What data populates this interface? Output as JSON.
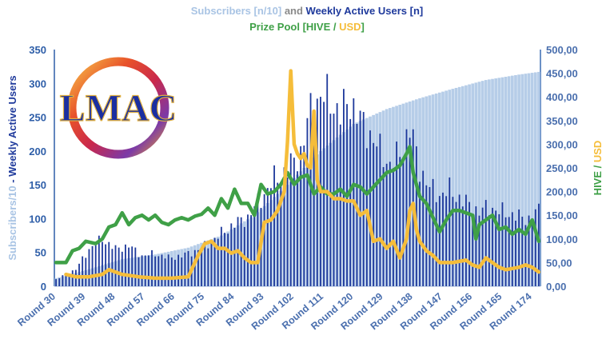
{
  "title": {
    "subs_part": "Subscribers [n/10]",
    "and_part": " and ",
    "wau_part": "Weekly Active Users [n]",
    "prize_part": "Prize Pool [HIVE",
    "slash_part": " / ",
    "usd_part": "USD",
    "close_part": "]"
  },
  "left_axis_label": {
    "subs_part": "Subscribers/10",
    "sep_part": " - ",
    "wau_part": "Weekly Active Users"
  },
  "right_axis_label": {
    "hive_part": "HIVE",
    "slash_part": " / ",
    "usd_part": "USD"
  },
  "logo": {
    "text": "LMAC"
  },
  "colors": {
    "subscribers": "#a9c4e4",
    "wau": "#1f3a9c",
    "hive": "#3fa047",
    "usd": "#f5bd3a",
    "left_axis": "#2e5ea8",
    "right_axis": "#3a6cb3",
    "ticks": "#4a6fae"
  },
  "chart_data": {
    "type": "bar",
    "x_start_round": 30,
    "x_end_round": 176,
    "x_tick_labels": [
      "Round 30",
      "Round 39",
      "Round 48",
      "Round 57",
      "Round 66",
      "Round 75",
      "Round 84",
      "Round 93",
      "Round 102",
      "Round 111",
      "Round 120",
      "Round 129",
      "Round 138",
      "Round 147",
      "Round 156",
      "Round 165",
      "Round 174"
    ],
    "left_axis": {
      "min": 0,
      "max": 350,
      "ticks": [
        "0",
        "50",
        "100",
        "150",
        "200",
        "250",
        "300",
        "350"
      ]
    },
    "right_axis": {
      "min": 0,
      "max": 500,
      "ticks": [
        "0,00",
        "50,00",
        "100,00",
        "150,00",
        "200,00",
        "250,00",
        "300,00",
        "350,00",
        "400,00",
        "450,00",
        "500,00"
      ]
    },
    "series": [
      {
        "name": "Subscribers [n/10]",
        "type": "bar",
        "axis": "left",
        "keypoints": [
          [
            30,
            12
          ],
          [
            40,
            25
          ],
          [
            50,
            40
          ],
          [
            60,
            47
          ],
          [
            70,
            57
          ],
          [
            80,
            75
          ],
          [
            90,
            105
          ],
          [
            100,
            150
          ],
          [
            110,
            200
          ],
          [
            120,
            240
          ],
          [
            130,
            262
          ],
          [
            140,
            278
          ],
          [
            150,
            292
          ],
          [
            160,
            305
          ],
          [
            170,
            313
          ],
          [
            176,
            317
          ]
        ]
      },
      {
        "name": "Weekly Active Users [n]",
        "type": "bar",
        "axis": "left",
        "keypoints": [
          [
            30,
            10
          ],
          [
            36,
            25
          ],
          [
            40,
            55
          ],
          [
            44,
            70
          ],
          [
            48,
            55
          ],
          [
            52,
            60
          ],
          [
            56,
            45
          ],
          [
            60,
            48
          ],
          [
            64,
            42
          ],
          [
            68,
            45
          ],
          [
            72,
            52
          ],
          [
            76,
            62
          ],
          [
            80,
            78
          ],
          [
            84,
            92
          ],
          [
            88,
            102
          ],
          [
            92,
            130
          ],
          [
            96,
            158
          ],
          [
            100,
            172
          ],
          [
            104,
            198
          ],
          [
            107,
            260
          ],
          [
            110,
            282
          ],
          [
            113,
            275
          ],
          [
            116,
            255
          ],
          [
            119,
            275
          ],
          [
            122,
            245
          ],
          [
            125,
            225
          ],
          [
            128,
            200
          ],
          [
            131,
            180
          ],
          [
            134,
            195
          ],
          [
            137,
            235
          ],
          [
            140,
            175
          ],
          [
            143,
            145
          ],
          [
            146,
            135
          ],
          [
            149,
            142
          ],
          [
            152,
            130
          ],
          [
            155,
            120
          ],
          [
            158,
            110
          ],
          [
            161,
            118
          ],
          [
            164,
            110
          ],
          [
            167,
            108
          ],
          [
            170,
            102
          ],
          [
            173,
            100
          ],
          [
            176,
            112
          ]
        ]
      },
      {
        "name": "HIVE",
        "type": "line",
        "axis": "right",
        "keypoints": [
          [
            30,
            50
          ],
          [
            33,
            50
          ],
          [
            35,
            75
          ],
          [
            37,
            80
          ],
          [
            39,
            95
          ],
          [
            42,
            90
          ],
          [
            44,
            100
          ],
          [
            46,
            125
          ],
          [
            48,
            130
          ],
          [
            50,
            155
          ],
          [
            52,
            130
          ],
          [
            54,
            145
          ],
          [
            56,
            150
          ],
          [
            58,
            140
          ],
          [
            60,
            150
          ],
          [
            62,
            135
          ],
          [
            64,
            130
          ],
          [
            66,
            140
          ],
          [
            68,
            145
          ],
          [
            70,
            140
          ],
          [
            72,
            148
          ],
          [
            74,
            152
          ],
          [
            76,
            165
          ],
          [
            78,
            150
          ],
          [
            80,
            185
          ],
          [
            82,
            165
          ],
          [
            84,
            205
          ],
          [
            86,
            175
          ],
          [
            88,
            175
          ],
          [
            90,
            150
          ],
          [
            92,
            215
          ],
          [
            94,
            195
          ],
          [
            96,
            200
          ],
          [
            98,
            215
          ],
          [
            100,
            240
          ],
          [
            102,
            215
          ],
          [
            104,
            230
          ],
          [
            106,
            235
          ],
          [
            108,
            195
          ],
          [
            110,
            210
          ],
          [
            112,
            195
          ],
          [
            114,
            195
          ],
          [
            116,
            205
          ],
          [
            118,
            190
          ],
          [
            120,
            215
          ],
          [
            122,
            210
          ],
          [
            124,
            195
          ],
          [
            126,
            210
          ],
          [
            128,
            225
          ],
          [
            130,
            240
          ],
          [
            132,
            245
          ],
          [
            134,
            255
          ],
          [
            136,
            280
          ],
          [
            137,
            295
          ],
          [
            138,
            240
          ],
          [
            140,
            190
          ],
          [
            142,
            175
          ],
          [
            144,
            145
          ],
          [
            146,
            115
          ],
          [
            148,
            140
          ],
          [
            150,
            160
          ],
          [
            152,
            160
          ],
          [
            154,
            155
          ],
          [
            156,
            150
          ],
          [
            157,
            100
          ],
          [
            158,
            130
          ],
          [
            160,
            140
          ],
          [
            162,
            150
          ],
          [
            164,
            120
          ],
          [
            166,
            125
          ],
          [
            168,
            110
          ],
          [
            170,
            120
          ],
          [
            172,
            110
          ],
          [
            174,
            140
          ],
          [
            176,
            95
          ]
        ]
      },
      {
        "name": "USD",
        "type": "line",
        "axis": "right",
        "keypoints": [
          [
            33,
            25
          ],
          [
            36,
            20
          ],
          [
            40,
            20
          ],
          [
            44,
            25
          ],
          [
            46,
            35
          ],
          [
            48,
            30
          ],
          [
            50,
            25
          ],
          [
            55,
            20
          ],
          [
            60,
            17
          ],
          [
            65,
            17
          ],
          [
            70,
            20
          ],
          [
            73,
            65
          ],
          [
            75,
            90
          ],
          [
            77,
            95
          ],
          [
            79,
            80
          ],
          [
            81,
            80
          ],
          [
            83,
            70
          ],
          [
            85,
            75
          ],
          [
            87,
            60
          ],
          [
            89,
            50
          ],
          [
            91,
            50
          ],
          [
            93,
            135
          ],
          [
            95,
            140
          ],
          [
            97,
            160
          ],
          [
            99,
            200
          ],
          [
            100,
            305
          ],
          [
            101,
            455
          ],
          [
            102,
            300
          ],
          [
            103,
            280
          ],
          [
            104,
            270
          ],
          [
            105,
            280
          ],
          [
            106,
            255
          ],
          [
            107,
            250
          ],
          [
            108,
            370
          ],
          [
            109,
            225
          ],
          [
            110,
            200
          ],
          [
            112,
            200
          ],
          [
            114,
            185
          ],
          [
            116,
            185
          ],
          [
            118,
            180
          ],
          [
            120,
            180
          ],
          [
            122,
            150
          ],
          [
            124,
            160
          ],
          [
            126,
            95
          ],
          [
            128,
            100
          ],
          [
            130,
            80
          ],
          [
            132,
            95
          ],
          [
            134,
            60
          ],
          [
            136,
            100
          ],
          [
            137,
            160
          ],
          [
            138,
            175
          ],
          [
            139,
            120
          ],
          [
            140,
            95
          ],
          [
            142,
            75
          ],
          [
            144,
            65
          ],
          [
            146,
            50
          ],
          [
            150,
            50
          ],
          [
            154,
            55
          ],
          [
            156,
            45
          ],
          [
            158,
            40
          ],
          [
            160,
            60
          ],
          [
            162,
            50
          ],
          [
            164,
            40
          ],
          [
            166,
            35
          ],
          [
            170,
            40
          ],
          [
            172,
            45
          ],
          [
            174,
            40
          ],
          [
            176,
            30
          ]
        ]
      }
    ]
  }
}
